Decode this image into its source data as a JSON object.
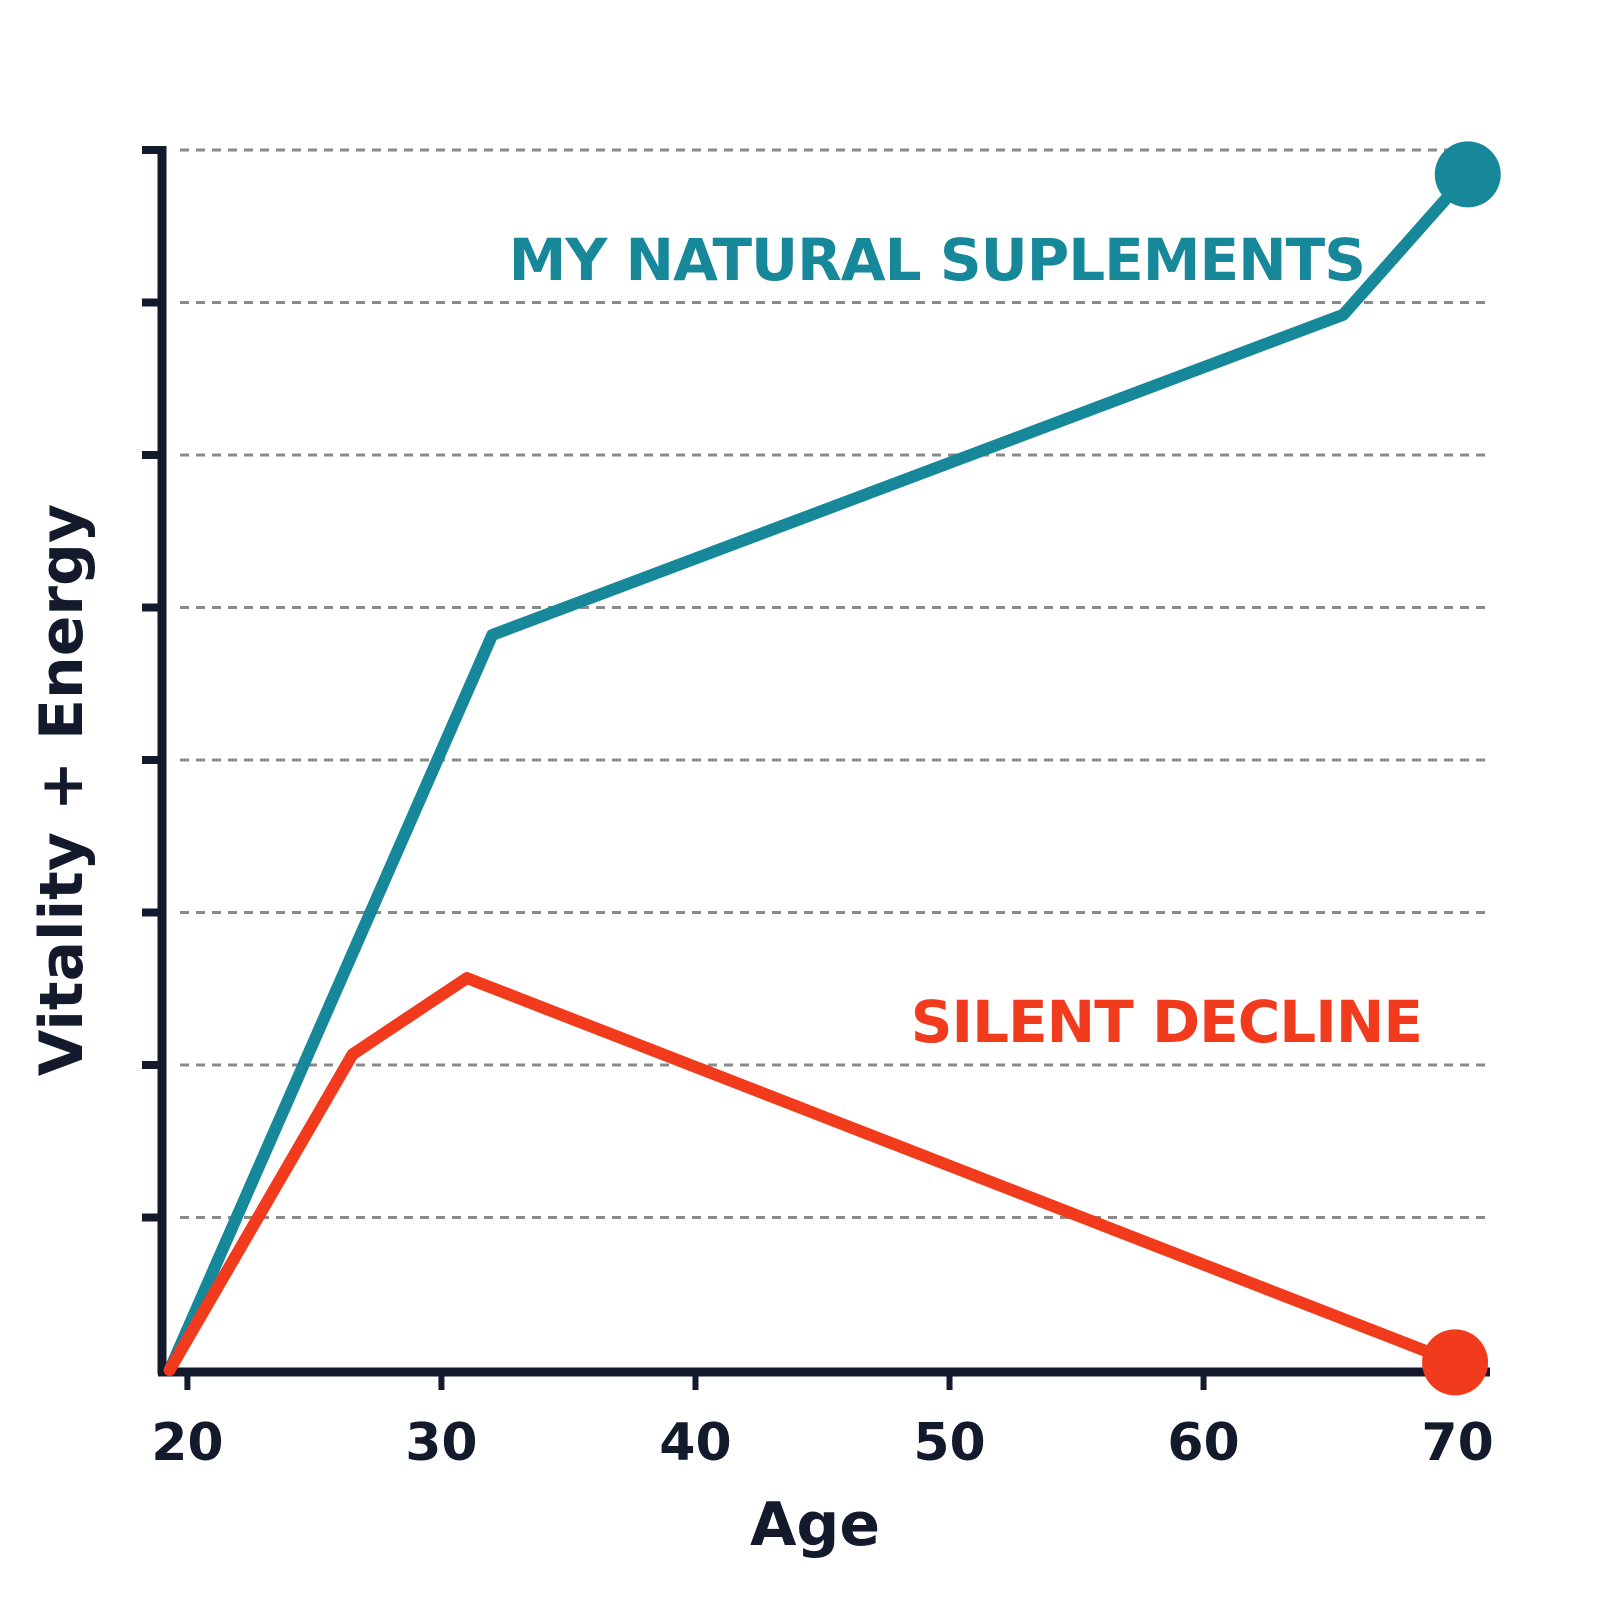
{
  "chart_data": {
    "type": "line",
    "x_label": "Age",
    "y_label": "Vitality + Energy",
    "xlim": [
      19,
      71
    ],
    "xticks": [
      20,
      30,
      40,
      50,
      60,
      70
    ],
    "ylim": [
      0,
      8
    ],
    "yticks": [
      1,
      2,
      3,
      4,
      5,
      6,
      7,
      8
    ],
    "grid": true,
    "markers": "end",
    "series": [
      {
        "name": "MY NATURAL SUPLEMENTS",
        "color": "#17879a",
        "x": [
          19.3,
          32,
          65.5,
          70.4
        ],
        "values": [
          0,
          4.82,
          6.92,
          7.84
        ]
      },
      {
        "name": "SILENT DECLINE",
        "color": "#f23a1c",
        "x": [
          19.3,
          26.5,
          31,
          69.9
        ],
        "values": [
          0,
          2.07,
          2.57,
          0.05
        ]
      }
    ]
  }
}
